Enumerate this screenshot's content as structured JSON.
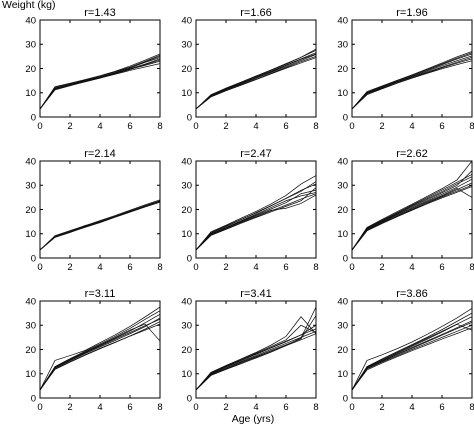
{
  "figure": {
    "ylabel": "Weight (kg)",
    "xlabel": "Age (yrs)"
  },
  "chart_data": [
    {
      "type": "line",
      "title": "r=1.43",
      "xlim": [
        0,
        8
      ],
      "ylim": [
        0,
        40
      ],
      "xticks": [
        0,
        2,
        4,
        6,
        8
      ],
      "yticks": [
        0,
        10,
        20,
        30,
        40
      ],
      "x": [
        0,
        1,
        2,
        3,
        4,
        5,
        6,
        7,
        8
      ],
      "series": [
        {
          "values": [
            3.3,
            11.5,
            13.0,
            14.5,
            16.0,
            17.8,
            19.6,
            21.6,
            23.5
          ]
        },
        {
          "values": [
            3.3,
            12.3,
            13.8,
            15.2,
            16.8,
            18.6,
            20.6,
            22.9,
            25.5
          ]
        },
        {
          "values": [
            3.3,
            11.8,
            13.4,
            15.0,
            16.4,
            18.1,
            19.9,
            21.8,
            24.0
          ]
        },
        {
          "values": [
            3.3,
            12.0,
            13.5,
            15.0,
            16.5,
            18.3,
            20.3,
            22.5,
            24.5
          ]
        },
        {
          "values": [
            3.3,
            11.2,
            12.9,
            14.6,
            16.1,
            17.6,
            19.2,
            20.6,
            22.0
          ]
        },
        {
          "values": [
            3.3,
            12.5,
            13.9,
            15.4,
            17.0,
            18.8,
            21.0,
            23.4,
            26.0
          ]
        },
        {
          "values": [
            3.3,
            11.6,
            13.2,
            14.8,
            16.3,
            17.9,
            19.7,
            21.3,
            23.0
          ]
        },
        {
          "values": [
            3.3,
            11.9,
            13.4,
            14.9,
            16.2,
            18.0,
            20.2,
            22.7,
            25.0
          ]
        }
      ]
    },
    {
      "type": "line",
      "title": "r=1.66",
      "xlim": [
        0,
        8
      ],
      "ylim": [
        0,
        40
      ],
      "xticks": [
        0,
        2,
        4,
        6,
        8
      ],
      "yticks": [
        0,
        10,
        20,
        30,
        40
      ],
      "x": [
        0,
        1,
        2,
        3,
        4,
        5,
        6,
        7,
        8
      ],
      "series": [
        {
          "values": [
            3.3,
            8.5,
            11.0,
            13.3,
            15.6,
            18.0,
            20.4,
            22.8,
            25.0
          ]
        },
        {
          "values": [
            3.3,
            9.0,
            11.6,
            14.0,
            16.4,
            18.9,
            21.4,
            24.0,
            26.5
          ]
        },
        {
          "values": [
            3.3,
            8.8,
            11.4,
            13.8,
            16.2,
            18.6,
            21.2,
            23.8,
            26.0
          ]
        },
        {
          "values": [
            3.3,
            9.2,
            11.9,
            14.4,
            16.9,
            19.4,
            22.0,
            24.6,
            27.5
          ]
        },
        {
          "values": [
            3.3,
            8.3,
            10.8,
            13.1,
            15.4,
            17.8,
            20.1,
            22.3,
            24.5
          ]
        },
        {
          "values": [
            3.3,
            9.1,
            11.7,
            14.2,
            16.7,
            19.2,
            21.8,
            24.6,
            28.0
          ]
        },
        {
          "values": [
            3.3,
            8.7,
            11.2,
            13.6,
            16.0,
            18.4,
            20.8,
            23.3,
            25.8
          ]
        }
      ]
    },
    {
      "type": "line",
      "title": "r=1.96",
      "xlim": [
        0,
        8
      ],
      "ylim": [
        0,
        40
      ],
      "xticks": [
        0,
        2,
        4,
        6,
        8
      ],
      "yticks": [
        0,
        10,
        20,
        30,
        40
      ],
      "x": [
        0,
        1,
        2,
        3,
        4,
        5,
        6,
        7,
        8
      ],
      "series": [
        {
          "values": [
            3.3,
            9.5,
            11.8,
            14.0,
            16.1,
            18.2,
            20.3,
            22.2,
            24.0
          ]
        },
        {
          "values": [
            3.3,
            10.2,
            12.6,
            14.9,
            17.2,
            19.5,
            21.9,
            24.3,
            26.5
          ]
        },
        {
          "values": [
            3.3,
            9.8,
            12.2,
            14.5,
            16.6,
            18.9,
            21.1,
            23.2,
            25.2
          ]
        },
        {
          "values": [
            3.3,
            10.5,
            12.8,
            15.1,
            17.4,
            19.8,
            22.3,
            24.8,
            27.0
          ]
        },
        {
          "values": [
            3.3,
            9.2,
            11.6,
            13.9,
            16.0,
            18.0,
            19.9,
            21.6,
            23.2
          ]
        },
        {
          "values": [
            3.3,
            10.0,
            12.4,
            14.6,
            16.9,
            19.2,
            21.6,
            23.9,
            26.0
          ]
        },
        {
          "values": [
            3.3,
            9.7,
            12.0,
            14.3,
            16.4,
            18.5,
            20.6,
            22.6,
            24.6
          ]
        }
      ]
    },
    {
      "type": "line",
      "title": "r=2.14",
      "xlim": [
        0,
        8
      ],
      "ylim": [
        0,
        40
      ],
      "xticks": [
        0,
        2,
        4,
        6,
        8
      ],
      "yticks": [
        0,
        10,
        20,
        30,
        40
      ],
      "x": [
        0,
        1,
        2,
        3,
        4,
        5,
        6,
        7,
        8
      ],
      "series": [
        {
          "values": [
            3.3,
            8.6,
            10.6,
            12.6,
            14.6,
            16.8,
            18.9,
            21.0,
            23.0
          ]
        },
        {
          "values": [
            3.3,
            9.0,
            11.0,
            13.1,
            15.1,
            17.2,
            19.4,
            21.5,
            23.6
          ]
        },
        {
          "values": [
            3.3,
            8.8,
            10.9,
            13.4,
            14.8,
            17.0,
            19.2,
            21.3,
            23.3
          ]
        },
        {
          "values": [
            3.3,
            9.2,
            11.3,
            13.3,
            15.4,
            17.5,
            19.7,
            21.9,
            24.0
          ]
        },
        {
          "values": [
            3.3,
            8.5,
            10.5,
            12.8,
            14.9,
            16.9,
            19.0,
            21.2,
            23.4
          ]
        },
        {
          "values": [
            3.3,
            8.9,
            10.8,
            12.9,
            15.0,
            17.1,
            19.3,
            21.5,
            23.5
          ]
        }
      ]
    },
    {
      "type": "line",
      "title": "r=2.47",
      "xlim": [
        0,
        8
      ],
      "ylim": [
        0,
        40
      ],
      "xticks": [
        0,
        2,
        4,
        6,
        8
      ],
      "yticks": [
        0,
        10,
        20,
        30,
        40
      ],
      "x": [
        0,
        1,
        2,
        3,
        4,
        5,
        6,
        7,
        8
      ],
      "series": [
        {
          "values": [
            3.3,
            9.5,
            12.0,
            14.6,
            17.0,
            19.4,
            21.8,
            24.3,
            26.5
          ]
        },
        {
          "values": [
            3.3,
            10.3,
            13.0,
            15.8,
            18.5,
            21.5,
            24.6,
            27.9,
            30.5
          ]
        },
        {
          "values": [
            3.3,
            9.8,
            12.5,
            15.1,
            17.7,
            20.2,
            22.8,
            26.5,
            28.0
          ]
        },
        {
          "values": [
            3.3,
            10.8,
            13.5,
            16.4,
            19.2,
            22.3,
            25.8,
            30.5,
            34.0
          ]
        },
        {
          "values": [
            3.3,
            9.3,
            11.8,
            14.3,
            16.7,
            19.0,
            21.3,
            23.6,
            29.0
          ]
        },
        {
          "values": [
            3.3,
            10.0,
            12.6,
            15.3,
            18.0,
            20.8,
            23.6,
            25.6,
            27.0
          ]
        },
        {
          "values": [
            3.3,
            10.5,
            13.2,
            15.9,
            18.7,
            21.6,
            24.5,
            27.5,
            31.5
          ]
        },
        {
          "values": [
            3.3,
            9.7,
            12.3,
            14.9,
            17.4,
            19.7,
            20.5,
            22.5,
            26.0
          ]
        }
      ]
    },
    {
      "type": "line",
      "title": "r=2.62",
      "xlim": [
        0,
        8
      ],
      "ylim": [
        0,
        40
      ],
      "xticks": [
        0,
        2,
        4,
        6,
        8
      ],
      "yticks": [
        0,
        10,
        20,
        30,
        40
      ],
      "x": [
        0,
        1,
        2,
        3,
        4,
        5,
        6,
        7,
        8
      ],
      "series": [
        {
          "values": [
            3.3,
            11.5,
            14.5,
            17.3,
            20.0,
            22.6,
            25.2,
            27.6,
            30.0
          ]
        },
        {
          "values": [
            3.3,
            12.3,
            15.4,
            18.5,
            21.5,
            24.4,
            27.4,
            30.6,
            33.5
          ]
        },
        {
          "values": [
            3.3,
            11.9,
            15.0,
            17.9,
            20.7,
            23.5,
            26.3,
            29.2,
            32.5
          ]
        },
        {
          "values": [
            3.3,
            12.6,
            15.9,
            19.1,
            22.2,
            25.4,
            28.6,
            32.2,
            40.0
          ]
        },
        {
          "values": [
            3.3,
            11.2,
            14.2,
            17.0,
            19.7,
            22.3,
            24.8,
            27.1,
            29.5
          ]
        },
        {
          "values": [
            3.3,
            12.1,
            15.2,
            18.2,
            21.1,
            24.0,
            26.9,
            29.9,
            36.0
          ]
        },
        {
          "values": [
            3.3,
            11.7,
            14.8,
            17.6,
            20.4,
            23.1,
            25.8,
            28.7,
            25.0
          ]
        },
        {
          "values": [
            3.3,
            12.4,
            15.6,
            18.7,
            21.8,
            24.9,
            28.0,
            31.2,
            34.5
          ]
        },
        {
          "values": [
            3.3,
            11.4,
            14.3,
            17.1,
            19.9,
            22.7,
            25.5,
            28.2,
            31.0
          ]
        }
      ]
    },
    {
      "type": "line",
      "title": "r=3.11",
      "xlim": [
        0,
        8
      ],
      "ylim": [
        0,
        40
      ],
      "xticks": [
        0,
        2,
        4,
        6,
        8
      ],
      "yticks": [
        0,
        10,
        20,
        30,
        40
      ],
      "x": [
        0,
        1,
        2,
        3,
        4,
        5,
        6,
        7,
        8
      ],
      "series": [
        {
          "values": [
            3.3,
            12.0,
            15.0,
            17.8,
            20.5,
            23.0,
            25.5,
            28.0,
            30.5
          ]
        },
        {
          "values": [
            3.3,
            13.0,
            16.2,
            19.3,
            22.3,
            25.4,
            28.7,
            32.4,
            36.0
          ]
        },
        {
          "values": [
            3.3,
            12.5,
            15.6,
            18.6,
            21.4,
            24.2,
            27.0,
            29.8,
            32.5
          ]
        },
        {
          "values": [
            3.3,
            15.5,
            17.5,
            19.6,
            22.8,
            26.0,
            29.5,
            33.4,
            37.5
          ]
        },
        {
          "values": [
            3.3,
            11.8,
            14.8,
            17.6,
            20.3,
            22.9,
            25.6,
            28.4,
            31.5
          ]
        },
        {
          "values": [
            3.3,
            12.8,
            16.0,
            19.0,
            21.9,
            24.9,
            28.0,
            30.5,
            23.5
          ]
        },
        {
          "values": [
            3.3,
            12.3,
            15.4,
            18.3,
            21.0,
            23.7,
            26.5,
            29.4,
            33.0
          ]
        },
        {
          "values": [
            3.3,
            12.6,
            15.8,
            18.8,
            21.7,
            24.6,
            27.6,
            31.0,
            34.5
          ]
        }
      ]
    },
    {
      "type": "line",
      "title": "r=3.41",
      "xlim": [
        0,
        8
      ],
      "ylim": [
        0,
        40
      ],
      "xticks": [
        0,
        2,
        4,
        6,
        8
      ],
      "yticks": [
        0,
        10,
        20,
        30,
        40
      ],
      "x": [
        0,
        1,
        2,
        3,
        4,
        5,
        6,
        7,
        8
      ],
      "series": [
        {
          "values": [
            3.3,
            9.5,
            12.0,
            14.4,
            16.8,
            19.2,
            21.6,
            24.0,
            26.5
          ]
        },
        {
          "values": [
            3.3,
            10.3,
            13.0,
            15.6,
            18.2,
            20.8,
            23.4,
            26.0,
            28.5
          ]
        },
        {
          "values": [
            3.3,
            9.9,
            12.5,
            15.0,
            17.5,
            20.0,
            22.5,
            25.0,
            27.5
          ]
        },
        {
          "values": [
            3.3,
            10.6,
            13.4,
            16.1,
            18.8,
            21.8,
            25.4,
            33.5,
            26.5
          ]
        },
        {
          "values": [
            3.3,
            9.3,
            11.8,
            14.1,
            16.5,
            18.9,
            21.6,
            24.8,
            37.5
          ]
        },
        {
          "values": [
            3.3,
            10.1,
            12.8,
            15.4,
            18.0,
            20.6,
            23.2,
            26.0,
            30.0
          ]
        },
        {
          "values": [
            3.3,
            9.7,
            12.2,
            14.7,
            17.1,
            19.5,
            21.9,
            24.4,
            34.0
          ]
        },
        {
          "values": [
            3.3,
            10.4,
            13.2,
            15.8,
            18.5,
            21.2,
            24.0,
            30.0,
            27.0
          ]
        }
      ]
    },
    {
      "type": "line",
      "title": "r=3.86",
      "xlim": [
        0,
        8
      ],
      "ylim": [
        0,
        40
      ],
      "xticks": [
        0,
        2,
        4,
        6,
        8
      ],
      "yticks": [
        0,
        10,
        20,
        30,
        40
      ],
      "x": [
        0,
        1,
        2,
        3,
        4,
        5,
        6,
        7,
        8
      ],
      "series": [
        {
          "values": [
            3.3,
            12.0,
            14.8,
            17.4,
            20.0,
            22.5,
            25.0,
            27.5,
            30.0
          ]
        },
        {
          "values": [
            3.3,
            12.8,
            15.9,
            18.8,
            21.7,
            24.6,
            27.5,
            30.5,
            33.5
          ]
        },
        {
          "values": [
            3.3,
            12.4,
            15.3,
            18.1,
            20.8,
            23.5,
            26.2,
            29.0,
            31.8
          ]
        },
        {
          "values": [
            3.3,
            15.5,
            17.8,
            20.3,
            23.1,
            26.2,
            29.5,
            33.0,
            37.0
          ]
        },
        {
          "values": [
            3.3,
            11.6,
            14.4,
            17.0,
            19.5,
            21.9,
            24.3,
            26.6,
            29.0
          ]
        },
        {
          "values": [
            3.3,
            12.6,
            15.6,
            18.5,
            21.3,
            24.2,
            27.2,
            30.4,
            28.0
          ]
        },
        {
          "values": [
            3.3,
            12.2,
            15.1,
            17.8,
            20.5,
            23.2,
            25.9,
            28.6,
            31.2
          ]
        },
        {
          "values": [
            3.3,
            13.0,
            16.1,
            19.1,
            22.0,
            25.0,
            28.2,
            31.6,
            35.0
          ]
        }
      ]
    }
  ]
}
